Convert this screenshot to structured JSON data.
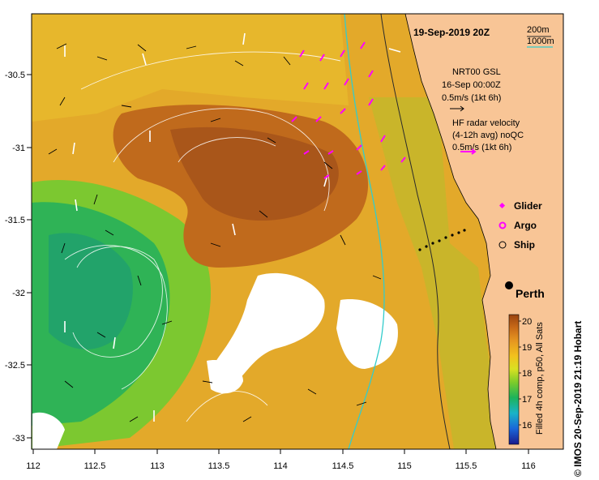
{
  "map": {
    "title": "19-Sep-2019 20Z",
    "x_ticks": [
      "112",
      "112.5",
      "113",
      "113.5",
      "114",
      "114.5",
      "115",
      "115.5",
      "116"
    ],
    "y_ticks": [
      "-30.5",
      "-31",
      "-31.5",
      "-32",
      "-32.5",
      "-33"
    ],
    "xlim": [
      112,
      116.3
    ],
    "ylim": [
      -33.1,
      -30.1
    ]
  },
  "isobaths": {
    "label_200": "200m",
    "label_1000": "1000m",
    "color_200": "#2a2a2a",
    "color_1000": "#33cccc"
  },
  "legend": {
    "nrt_line1": "NRT00 GSL",
    "nrt_line2": "16-Sep 00:00Z",
    "nrt_scale": "0.5m/s (1kt 6h)",
    "hf_line1": "HF radar velocity",
    "hf_line2": "(4-12h avg) noQC",
    "hf_scale": "0.5m/s (1kt 6h)",
    "glider": "Glider",
    "argo": "Argo",
    "ship": "Ship",
    "glider_color": "#ff00ff",
    "argo_color": "#ff00ff"
  },
  "place": {
    "name": "Perth",
    "lon": 115.86,
    "lat": -31.95
  },
  "colorbar": {
    "ticks": [
      "16",
      "17",
      "18",
      "19",
      "20"
    ],
    "label": "Filled 4h comp, p50, All Sats",
    "min": 15.5,
    "max": 20.5
  },
  "credit": "© IMOS 20-Sep-2019 21:19 Hobart"
}
